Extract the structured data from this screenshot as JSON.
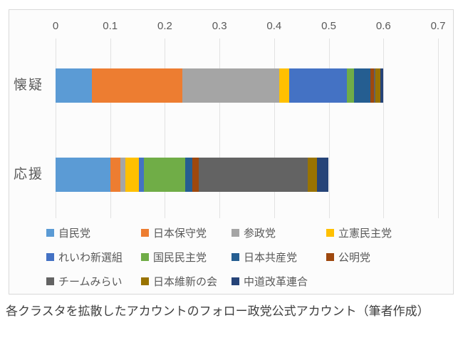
{
  "chart_data": {
    "type": "bar",
    "orientation": "horizontal",
    "stacked": true,
    "categories": [
      "懐疑",
      "応援"
    ],
    "series": [
      {
        "name": "自民党",
        "color": "#5B9BD5",
        "values": [
          0.067,
          0.1
        ]
      },
      {
        "name": "日本保守党",
        "color": "#ED7D31",
        "values": [
          0.165,
          0.019
        ]
      },
      {
        "name": "参政党",
        "color": "#A5A5A5",
        "values": [
          0.177,
          0.009
        ]
      },
      {
        "name": "立憲民主党",
        "color": "#FFC000",
        "values": [
          0.018,
          0.024
        ]
      },
      {
        "name": "れいわ新選組",
        "color": "#4472C4",
        "values": [
          0.106,
          0.01
        ]
      },
      {
        "name": "国民民主党",
        "color": "#70AD47",
        "values": [
          0.013,
          0.075
        ]
      },
      {
        "name": "日本共産党",
        "color": "#255E91",
        "values": [
          0.03,
          0.013
        ]
      },
      {
        "name": "公明党",
        "color": "#9E480E",
        "values": [
          0.007,
          0.012
        ]
      },
      {
        "name": "チームみらい",
        "color": "#636363",
        "values": [
          0.002,
          0.2
        ]
      },
      {
        "name": "日本維新の会",
        "color": "#997300",
        "values": [
          0.009,
          0.016
        ]
      },
      {
        "name": "中道改革連合",
        "color": "#264478",
        "values": [
          0.006,
          0.021
        ]
      }
    ],
    "x_ticks": [
      0,
      0.1,
      0.2,
      0.3,
      0.4,
      0.5,
      0.6,
      0.7
    ],
    "x_tick_labels": [
      "0",
      "0.1",
      "0.2",
      "0.3",
      "0.4",
      "0.5",
      "0.6",
      "0.7"
    ],
    "xlim": [
      0,
      0.7
    ],
    "grid": true,
    "legend_position": "bottom"
  },
  "caption": "各クラスタを拡散したアカウントのフォロー政党公式アカウント（筆者作成）",
  "colors": {
    "axis_text": "#595959",
    "grid_line": "#e2e2e2",
    "chart_border": "#d9d9d9",
    "caption_text": "#3f3f3f"
  }
}
